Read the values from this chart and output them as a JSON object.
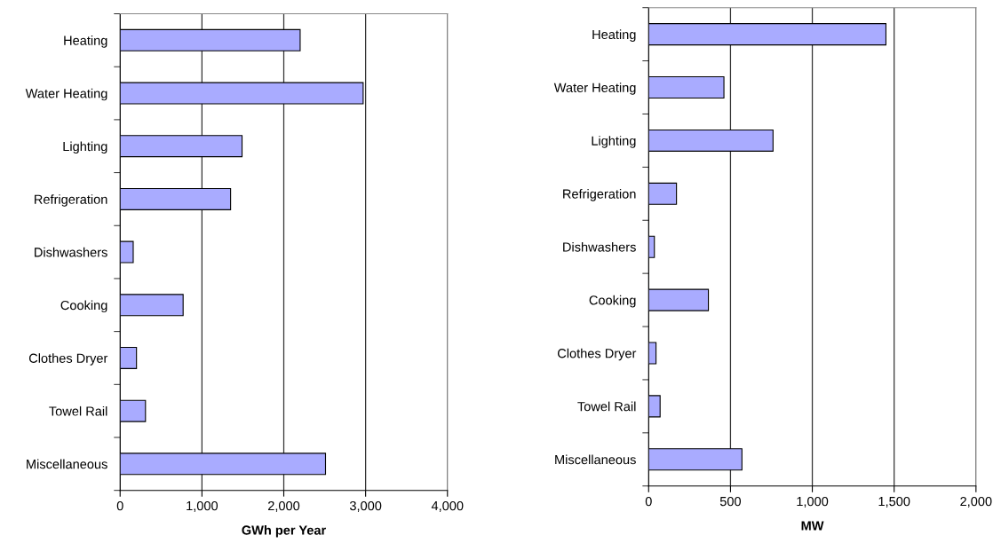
{
  "chart_data": [
    {
      "type": "bar",
      "orientation": "horizontal",
      "xlabel": "GWh per Year",
      "categories": [
        "Heating",
        "Water Heating",
        "Lighting",
        "Refrigeration",
        "Dishwashers",
        "Cooking",
        "Clothes Dryer",
        "Towel Rail",
        "Miscellaneous"
      ],
      "values": [
        2200,
        2970,
        1490,
        1350,
        160,
        770,
        200,
        310,
        2510
      ],
      "color": "#a9abff",
      "xlim": [
        0,
        4000
      ],
      "xticks": [
        {
          "value": 0,
          "label": "0"
        },
        {
          "value": 1000,
          "label": "1,000"
        },
        {
          "value": 2000,
          "label": "2,000"
        },
        {
          "value": 3000,
          "label": "3,000"
        },
        {
          "value": 4000,
          "label": "4,000"
        }
      ],
      "grid": "x"
    },
    {
      "type": "bar",
      "orientation": "horizontal",
      "xlabel": "MW",
      "categories": [
        "Heating",
        "Water Heating",
        "Lighting",
        "Refrigeration",
        "Dishwashers",
        "Cooking",
        "Clothes Dryer",
        "Towel Rail",
        "Miscellaneous"
      ],
      "values": [
        1450,
        460,
        760,
        170,
        35,
        365,
        45,
        70,
        570
      ],
      "color": "#a9abff",
      "xlim": [
        0,
        2000
      ],
      "xticks": [
        {
          "value": 0,
          "label": "0"
        },
        {
          "value": 500,
          "label": "500"
        },
        {
          "value": 1000,
          "label": "1,000"
        },
        {
          "value": 1500,
          "label": "1,500"
        },
        {
          "value": 2000,
          "label": "2,000"
        }
      ],
      "grid": "x"
    }
  ]
}
